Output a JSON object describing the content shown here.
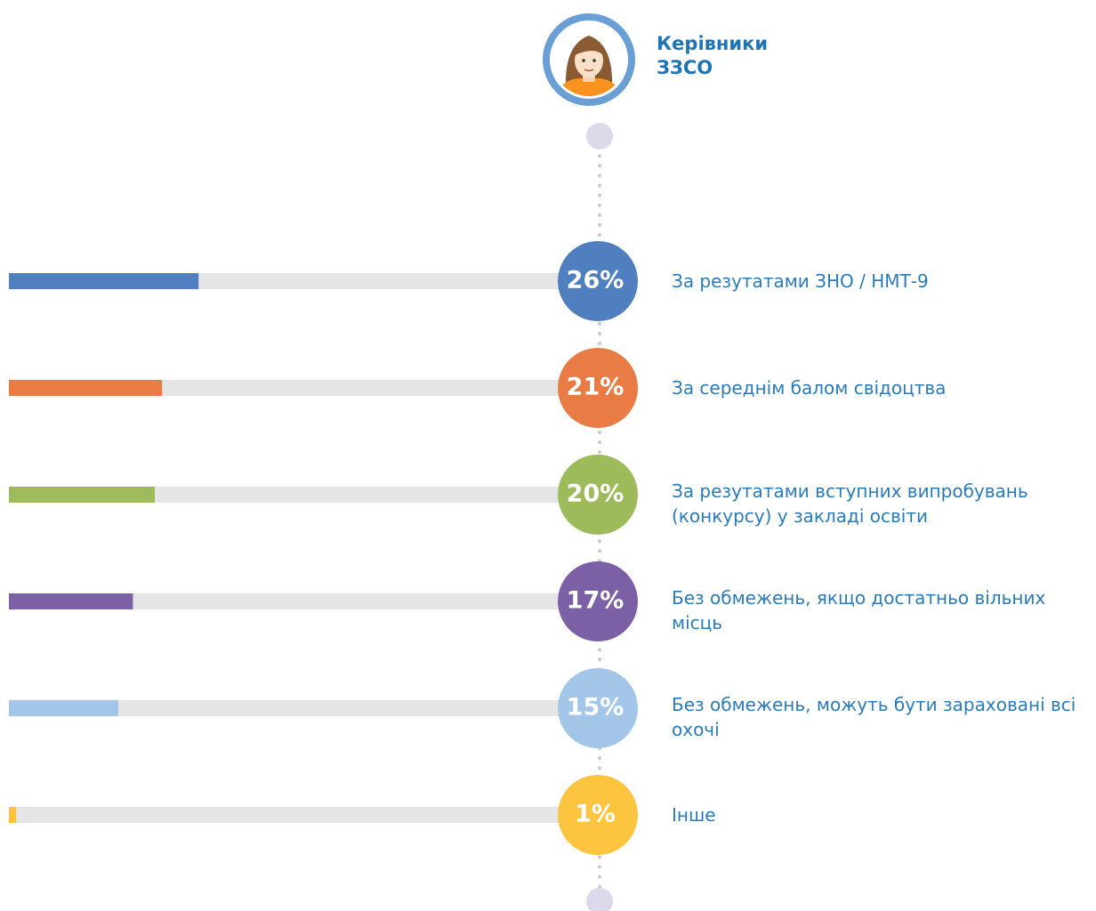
{
  "chart_data": {
    "type": "bar",
    "orientation": "horizontal",
    "title": "Керівники ЗЗСО",
    "categories": [
      "За резутатами ЗНО / НМТ-9",
      "За середнім балом свідоцтва",
      "За резутатами вступних випробувань (конкурсу) у закладі освіти",
      "Без обмежень, якщо достатньо вільних місць",
      "Без обмежень, можуть бути зараховані всі охочі",
      "Інше"
    ],
    "values": [
      26,
      21,
      20,
      17,
      15,
      1
    ],
    "value_labels": [
      "26%",
      "21%",
      "20%",
      "17%",
      "15%",
      "1%"
    ],
    "colors": [
      "#4f7fbf",
      "#e97b45",
      "#9dbb5a",
      "#7c60a6",
      "#a3c6e8",
      "#fdc43f"
    ]
  }
}
